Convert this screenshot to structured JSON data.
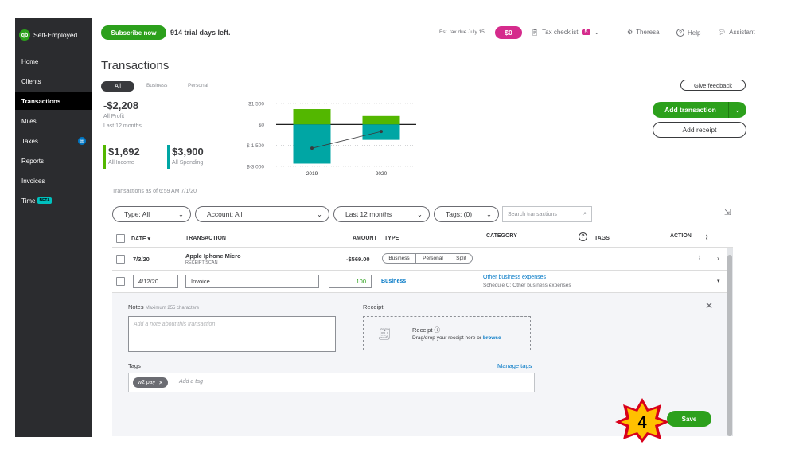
{
  "sidebar": {
    "brand": "Self-Employed",
    "items": [
      {
        "label": "Home"
      },
      {
        "label": "Clients"
      },
      {
        "label": "Transactions"
      },
      {
        "label": "Miles"
      },
      {
        "label": "Taxes"
      },
      {
        "label": "Reports"
      },
      {
        "label": "Invoices"
      },
      {
        "label": "Time"
      }
    ],
    "time_badge": "BETA"
  },
  "topbar": {
    "subscribe": "Subscribe now",
    "trial": "914 trial days left.",
    "est_tax_label": "Est. tax due July 15:",
    "est_tax_value": "$0",
    "tax_checklist": "Tax checklist",
    "tax_checklist_count": "5",
    "user": "Theresa",
    "help": "Help",
    "assistant": "Assistant"
  },
  "page": {
    "title": "Transactions",
    "segments": [
      "All",
      "Business",
      "Personal"
    ],
    "feedback": "Give feedback",
    "add_transaction": "Add transaction",
    "add_receipt": "Add receipt",
    "as_of": "Transactions as of 6:59 AM 7/1/20"
  },
  "summary": {
    "profit": "-$2,208",
    "profit_label": "All Profit",
    "period": "Last 12 months",
    "income": "$1,692",
    "income_label": "All Income",
    "spending": "$3,900",
    "spending_label": "All Spending",
    "colors": {
      "income": "#53b700",
      "spending": "#00a6a4"
    }
  },
  "chart_data": {
    "type": "bar",
    "categories": [
      "2019",
      "2020"
    ],
    "series": [
      {
        "name": "All Income",
        "values": [
          1100,
          600
        ]
      },
      {
        "name": "All Spending",
        "values": [
          -2800,
          -1100
        ]
      }
    ],
    "profit_line": [
      -1700,
      -500
    ],
    "y_ticks": [
      "$1 500",
      "$0",
      "$-1 500",
      "$-3 000"
    ],
    "ylim": [
      -3000,
      1500
    ]
  },
  "filters": {
    "type": "Type: All",
    "account": "Account: All",
    "period": "Last 12 months",
    "tags": "Tags: (0)",
    "search_placeholder": "Search transactions"
  },
  "table": {
    "headers": {
      "date": "DATE",
      "transaction": "TRANSACTION",
      "amount": "AMOUNT",
      "type": "TYPE",
      "category": "CATEGORY",
      "tags": "TAGS",
      "action": "ACTION"
    },
    "row1": {
      "date": "7/3/20",
      "name": "Apple Iphone Micro",
      "sub": "RECEIPT SCAN",
      "amount": "-$569.00",
      "types": [
        "Business",
        "Personal",
        "Split"
      ]
    },
    "row2": {
      "date": "4/12/20",
      "name": "Invoice",
      "amount": "100",
      "type": "Business",
      "category": "Other business expenses",
      "category_sub": "Schedule C: Other business expenses"
    }
  },
  "detail": {
    "notes_label": "Notes",
    "notes_hint": "Maximum 255 characters",
    "notes_placeholder": "Add a note about this transaction",
    "receipt_label": "Receipt",
    "receipt_title": "Receipt",
    "receipt_hint": "Drag/drop your receipt here or",
    "receipt_browse": "browse",
    "tags_label": "Tags",
    "manage_tags": "Manage tags",
    "tag_chip": "w2 pay",
    "tag_placeholder": "Add a tag",
    "save": "Save"
  },
  "callout": {
    "step": "4"
  }
}
